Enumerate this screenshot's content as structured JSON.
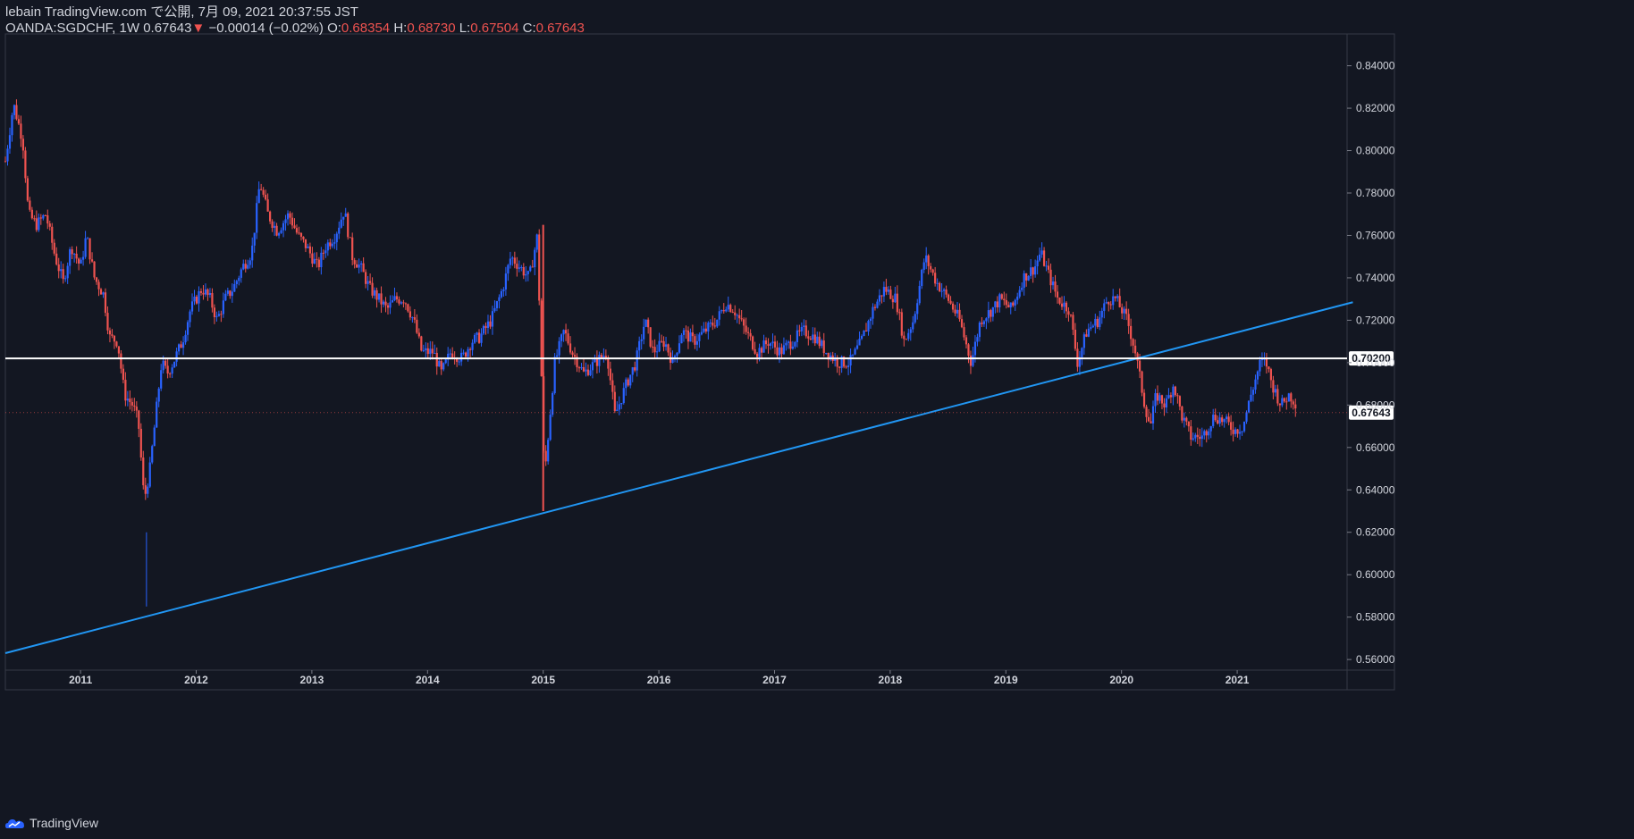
{
  "header": {
    "publish_line": "lebain TradingView.com で公開, 7月 09, 2021 20:37:55 JST",
    "symbol": "OANDA:SGDCHF, 1W",
    "last": "0.67643",
    "change_arrow": "▼",
    "change": "−0.00014 (−0.02%)",
    "o_label": "O:",
    "o_value": "0.68354",
    "h_label": "H:",
    "h_value": "0.68730",
    "l_label": "L:",
    "l_value": "0.67504",
    "c_label": "C:",
    "c_value": "0.67643"
  },
  "footer": {
    "brand": "TradingView"
  },
  "colors": {
    "background": "#131722",
    "up": "#2962ff",
    "down": "#ef5350",
    "trendline": "#2196f3",
    "hline": "#ffffff",
    "text": "#d1d4dc"
  },
  "chart_data": {
    "type": "candlestick",
    "symbol": "OANDA:SGDCHF",
    "interval": "1W",
    "ylim": [
      0.555,
      0.855
    ],
    "xlim": [
      2010.35,
      2021.95
    ],
    "y_ticks": [
      "0.56000",
      "0.58000",
      "0.60000",
      "0.62000",
      "0.64000",
      "0.66000",
      "0.68000",
      "0.70000",
      "0.72000",
      "0.74000",
      "0.76000",
      "0.78000",
      "0.80000",
      "0.82000",
      "0.84000"
    ],
    "x_ticks": [
      {
        "label": "2011",
        "x": 2011
      },
      {
        "label": "2012",
        "x": 2012
      },
      {
        "label": "2013",
        "x": 2013
      },
      {
        "label": "2014",
        "x": 2014
      },
      {
        "label": "2015",
        "x": 2015
      },
      {
        "label": "2016",
        "x": 2016
      },
      {
        "label": "2017",
        "x": 2017
      },
      {
        "label": "2018",
        "x": 2018
      },
      {
        "label": "2019",
        "x": 2019
      },
      {
        "label": "2020",
        "x": 2020
      },
      {
        "label": "2021",
        "x": 2021
      }
    ],
    "horizontal_line": {
      "y": 0.702,
      "label": "0.70200"
    },
    "last_price": {
      "y": 0.67643,
      "label": "0.67643"
    },
    "trendline": {
      "x1": 2010.35,
      "y1": 0.563,
      "x2": 2022.0,
      "y2": 0.7285
    },
    "price_path": [
      [
        2010.35,
        0.795
      ],
      [
        2010.42,
        0.822
      ],
      [
        2010.5,
        0.805
      ],
      [
        2010.55,
        0.77
      ],
      [
        2010.62,
        0.765
      ],
      [
        2010.7,
        0.77
      ],
      [
        2010.78,
        0.75
      ],
      [
        2010.85,
        0.738
      ],
      [
        2010.92,
        0.755
      ],
      [
        2011.0,
        0.745
      ],
      [
        2011.05,
        0.76
      ],
      [
        2011.12,
        0.74
      ],
      [
        2011.2,
        0.732
      ],
      [
        2011.25,
        0.712
      ],
      [
        2011.32,
        0.71
      ],
      [
        2011.38,
        0.685
      ],
      [
        2011.45,
        0.68
      ],
      [
        2011.5,
        0.672
      ],
      [
        2011.55,
        0.635
      ],
      [
        2011.6,
        0.65
      ],
      [
        2011.65,
        0.675
      ],
      [
        2011.7,
        0.7
      ],
      [
        2011.75,
        0.695
      ],
      [
        2011.8,
        0.7
      ],
      [
        2011.88,
        0.71
      ],
      [
        2011.95,
        0.725
      ],
      [
        2012.05,
        0.735
      ],
      [
        2012.12,
        0.73
      ],
      [
        2012.18,
        0.72
      ],
      [
        2012.25,
        0.73
      ],
      [
        2012.32,
        0.735
      ],
      [
        2012.4,
        0.745
      ],
      [
        2012.48,
        0.752
      ],
      [
        2012.55,
        0.785
      ],
      [
        2012.62,
        0.77
      ],
      [
        2012.7,
        0.762
      ],
      [
        2012.8,
        0.77
      ],
      [
        2012.88,
        0.76
      ],
      [
        2012.95,
        0.755
      ],
      [
        2013.05,
        0.745
      ],
      [
        2013.12,
        0.755
      ],
      [
        2013.2,
        0.76
      ],
      [
        2013.28,
        0.772
      ],
      [
        2013.35,
        0.75
      ],
      [
        2013.42,
        0.745
      ],
      [
        2013.5,
        0.735
      ],
      [
        2013.58,
        0.73
      ],
      [
        2013.65,
        0.725
      ],
      [
        2013.72,
        0.73
      ],
      [
        2013.8,
        0.73
      ],
      [
        2013.88,
        0.72
      ],
      [
        2013.95,
        0.705
      ],
      [
        2014.05,
        0.705
      ],
      [
        2014.12,
        0.695
      ],
      [
        2014.2,
        0.705
      ],
      [
        2014.3,
        0.702
      ],
      [
        2014.38,
        0.71
      ],
      [
        2014.45,
        0.712
      ],
      [
        2014.55,
        0.72
      ],
      [
        2014.65,
        0.735
      ],
      [
        2014.72,
        0.75
      ],
      [
        2014.8,
        0.745
      ],
      [
        2014.88,
        0.74
      ],
      [
        2014.95,
        0.76
      ],
      [
        2015.01,
        0.645
      ],
      [
        2015.05,
        0.67
      ],
      [
        2015.1,
        0.7
      ],
      [
        2015.18,
        0.715
      ],
      [
        2015.25,
        0.705
      ],
      [
        2015.35,
        0.695
      ],
      [
        2015.45,
        0.7
      ],
      [
        2015.55,
        0.705
      ],
      [
        2015.62,
        0.675
      ],
      [
        2015.72,
        0.69
      ],
      [
        2015.8,
        0.7
      ],
      [
        2015.88,
        0.72
      ],
      [
        2015.95,
        0.705
      ],
      [
        2016.05,
        0.71
      ],
      [
        2016.12,
        0.7
      ],
      [
        2016.2,
        0.715
      ],
      [
        2016.3,
        0.71
      ],
      [
        2016.4,
        0.715
      ],
      [
        2016.5,
        0.72
      ],
      [
        2016.58,
        0.728
      ],
      [
        2016.65,
        0.725
      ],
      [
        2016.75,
        0.715
      ],
      [
        2016.85,
        0.705
      ],
      [
        2016.95,
        0.71
      ],
      [
        2017.05,
        0.705
      ],
      [
        2017.15,
        0.71
      ],
      [
        2017.25,
        0.715
      ],
      [
        2017.35,
        0.712
      ],
      [
        2017.45,
        0.705
      ],
      [
        2017.55,
        0.7
      ],
      [
        2017.65,
        0.7
      ],
      [
        2017.75,
        0.71
      ],
      [
        2017.85,
        0.725
      ],
      [
        2017.95,
        0.735
      ],
      [
        2018.05,
        0.73
      ],
      [
        2018.12,
        0.71
      ],
      [
        2018.2,
        0.72
      ],
      [
        2018.3,
        0.75
      ],
      [
        2018.4,
        0.738
      ],
      [
        2018.5,
        0.73
      ],
      [
        2018.6,
        0.72
      ],
      [
        2018.7,
        0.7
      ],
      [
        2018.78,
        0.72
      ],
      [
        2018.88,
        0.725
      ],
      [
        2018.95,
        0.73
      ],
      [
        2019.05,
        0.725
      ],
      [
        2019.15,
        0.74
      ],
      [
        2019.25,
        0.745
      ],
      [
        2019.3,
        0.752
      ],
      [
        2019.38,
        0.74
      ],
      [
        2019.45,
        0.73
      ],
      [
        2019.55,
        0.725
      ],
      [
        2019.62,
        0.7
      ],
      [
        2019.7,
        0.715
      ],
      [
        2019.8,
        0.72
      ],
      [
        2019.88,
        0.73
      ],
      [
        2019.95,
        0.73
      ],
      [
        2020.05,
        0.72
      ],
      [
        2020.12,
        0.705
      ],
      [
        2020.2,
        0.68
      ],
      [
        2020.25,
        0.67
      ],
      [
        2020.3,
        0.685
      ],
      [
        2020.38,
        0.68
      ],
      [
        2020.45,
        0.69
      ],
      [
        2020.52,
        0.675
      ],
      [
        2020.6,
        0.665
      ],
      [
        2020.7,
        0.665
      ],
      [
        2020.8,
        0.675
      ],
      [
        2020.9,
        0.672
      ],
      [
        2020.98,
        0.668
      ],
      [
        2021.05,
        0.67
      ],
      [
        2021.12,
        0.685
      ],
      [
        2021.2,
        0.7
      ],
      [
        2021.25,
        0.7
      ],
      [
        2021.3,
        0.69
      ],
      [
        2021.38,
        0.68
      ],
      [
        2021.45,
        0.685
      ],
      [
        2021.52,
        0.68
      ]
    ]
  }
}
